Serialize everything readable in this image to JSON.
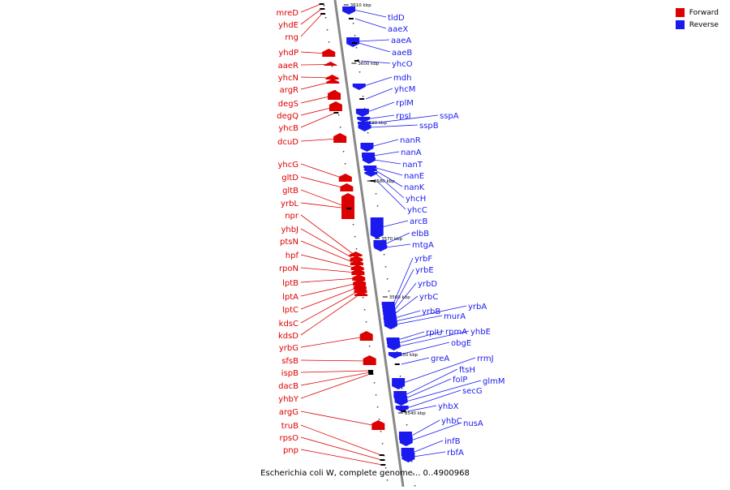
{
  "colors": {
    "forward": "#dd0000",
    "reverse": "#1a1aee",
    "backbone": "#888888",
    "tick": "#000000"
  },
  "legend": {
    "forward_label": "Forward",
    "reverse_label": "Reverse"
  },
  "footer": {
    "caption": "Escherichia coli W, complete genome... 0..4900968"
  },
  "scale_labels": [
    "3610 kbp",
    "3600 kbp",
    "3590 kbp",
    "3580 kbp",
    "3570 kbp",
    "3560 kbp",
    "3550 kbp",
    "3540 kbp"
  ],
  "forward_genes": [
    "mreD",
    "yhdE",
    "rng",
    "yhdP",
    "aaeR",
    "yhcN",
    "argR",
    "degS",
    "degQ",
    "yhcB",
    "dcuD",
    "yhcG",
    "gltD",
    "gltB",
    "yrbL",
    "npr",
    "yhbJ",
    "ptsN",
    "hpf",
    "rpoN",
    "lptB",
    "lptA",
    "lptC",
    "kdsC",
    "kdsD",
    "yrbG",
    "sfsB",
    "ispB",
    "dacB",
    "yhbY",
    "argG",
    "truB",
    "rpsO",
    "pnp"
  ],
  "reverse_genes": [
    "tldD",
    "aaeX",
    "aaeA",
    "aaeB",
    "yhcO",
    "mdh",
    "yhcM",
    "rplM",
    "rpsI",
    "sspA",
    "sspB",
    "nanR",
    "nanA",
    "nanT",
    "nanE",
    "nanK",
    "yhcH",
    "yhcC",
    "arcB",
    "elbB",
    "mtgA",
    "yrbF",
    "yrbE",
    "yrbD",
    "yrbC",
    "yrbB",
    "yrbA",
    "murA",
    "rplU",
    "rpmA",
    "yhbE",
    "obgE",
    "greA",
    "rrmJ",
    "ftsH",
    "folP",
    "glmM",
    "secG",
    "yhbX",
    "yhbC",
    "nusA",
    "infB",
    "rbfA"
  ]
}
